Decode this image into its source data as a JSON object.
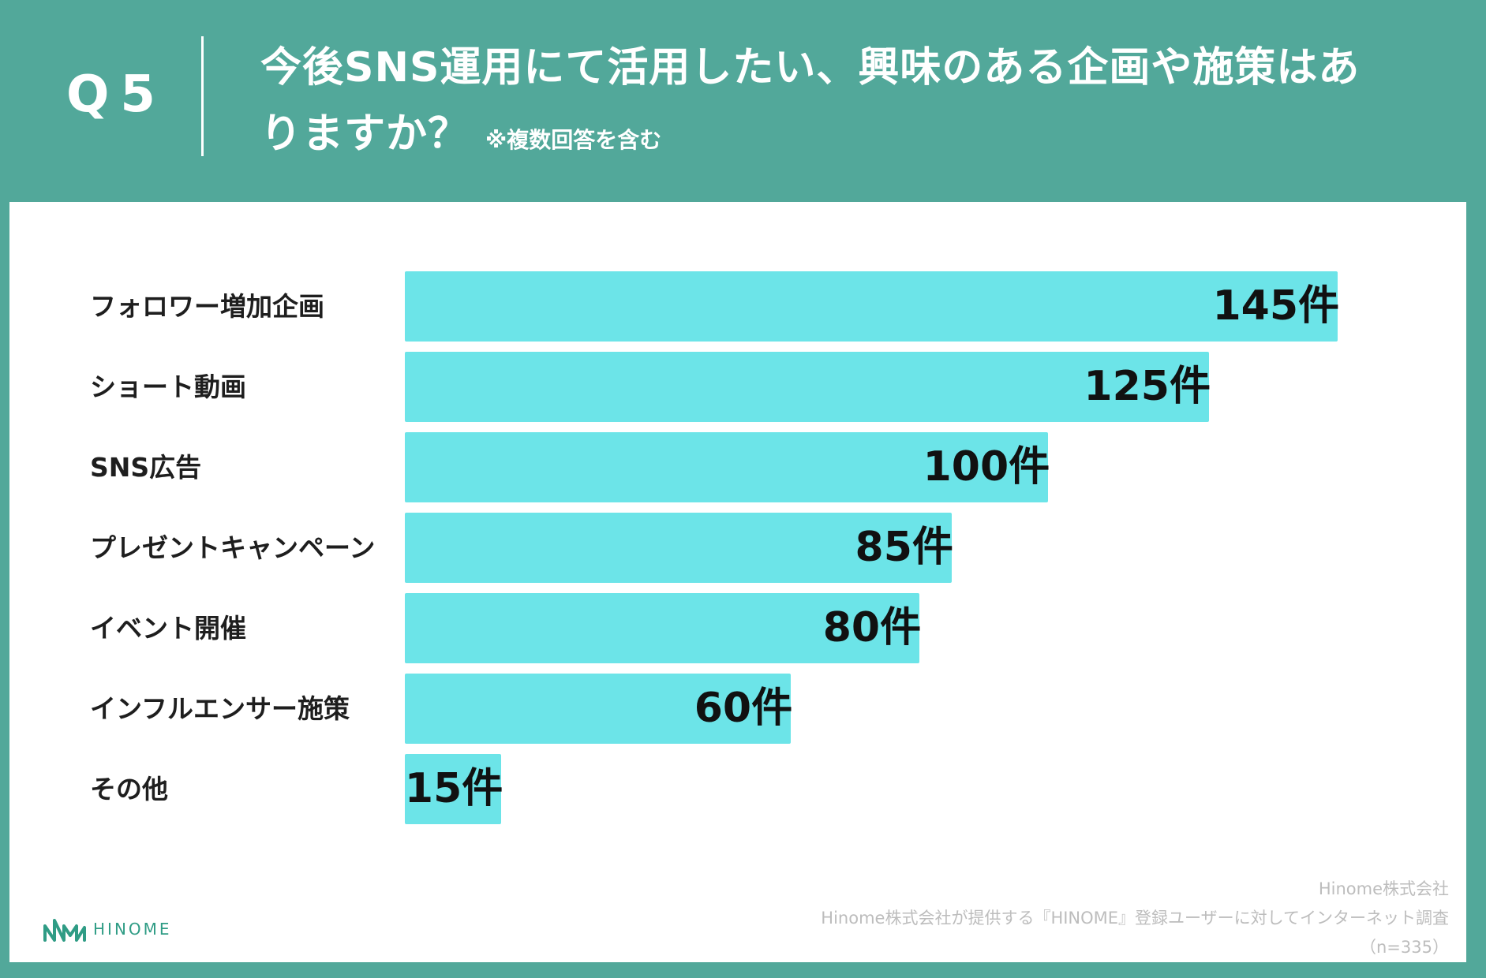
{
  "header": {
    "question_number": "Q5",
    "title_lines": [
      "今後SNS運用にて活用したい、興味のある企画や施策はあ",
      "りますか？"
    ],
    "note": "※複数回答を含む"
  },
  "chart_data": {
    "type": "bar",
    "orientation": "horizontal",
    "categories": [
      "フォロワー増加企画",
      "ショート動画",
      "SNS広告",
      "プレゼントキャンペーン",
      "イベント開催",
      "インフルエンサー施策",
      "その他"
    ],
    "values": [
      145,
      125,
      100,
      85,
      80,
      60,
      15
    ],
    "value_labels": [
      "145件",
      "125件",
      "100件",
      "85件",
      "80件",
      "60件",
      "15件"
    ],
    "grid": false,
    "legend": "none",
    "axes_visible": false
  },
  "footer": {
    "logo_text": "HINOME",
    "company": "Hinome株式会社",
    "source": "Hinome株式会社が提供する『HINOME』登録ユーザーに対してインターネット調査",
    "sample": "（n=335）"
  },
  "colors": {
    "header_background": "#52A89A",
    "card_background": "#FFFFFF",
    "bar": "#6CE4E8",
    "text": "#1E1E1E",
    "footer_text": "#BDBDBD",
    "logo": "#2F9C85"
  },
  "icons": {
    "logo": "hinome-logo-icon"
  }
}
